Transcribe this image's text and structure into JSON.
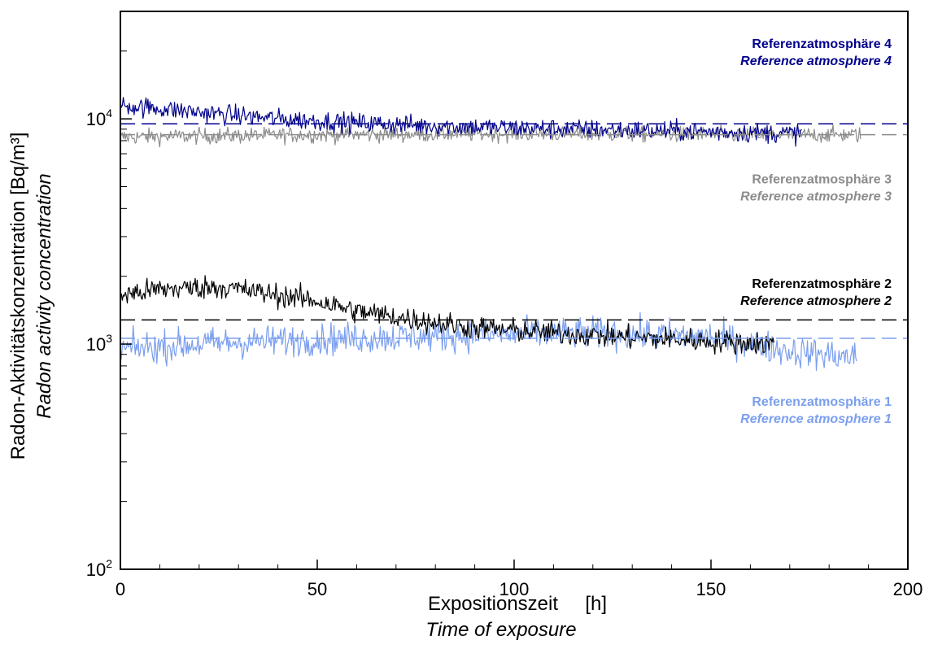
{
  "chart_data": {
    "type": "line",
    "xlabel": "Expositionszeit     [h]",
    "xlabel_en": "Time of exposure",
    "ylabel": "Radon-Aktivitätskonzentration [Bq/m³]",
    "ylabel_en": "Radon activity concentration",
    "xlim": [
      0,
      200
    ],
    "ylim": [
      100,
      30000
    ],
    "yscale": "log",
    "x_ticks": [
      0,
      50,
      100,
      150,
      200
    ],
    "x_tick_labels": [
      "0",
      "50",
      "100",
      "150",
      "200"
    ],
    "y_ticks": [
      100,
      1000,
      10000
    ],
    "y_tick_labels": [
      {
        "base": "10",
        "exp": "2"
      },
      {
        "base": "10",
        "exp": "3"
      },
      {
        "base": "10",
        "exp": "4"
      }
    ],
    "grid": false,
    "series": [
      {
        "name": "Referenzatmosphäre 4",
        "name_en": "Reference atmosphere 4",
        "color": "#00008B",
        "x_range": [
          0,
          173
        ],
        "trend": [
          [
            0,
            11500
          ],
          [
            20,
            10700
          ],
          [
            40,
            10000
          ],
          [
            60,
            9600
          ],
          [
            80,
            9300
          ],
          [
            100,
            9100
          ],
          [
            130,
            8900
          ],
          [
            160,
            8700
          ],
          [
            173,
            8600
          ]
        ],
        "noise": 0.05,
        "reference_value": 9500
      },
      {
        "name": "Referenzatmosphäre 3",
        "name_en": "Reference atmosphere 3",
        "color": "#8C8C8C",
        "x_range": [
          0,
          188
        ],
        "trend": [
          [
            0,
            8300
          ],
          [
            50,
            8500
          ],
          [
            100,
            8600
          ],
          [
            150,
            8500
          ],
          [
            188,
            8500
          ]
        ],
        "noise": 0.04,
        "reference_value": 8500
      },
      {
        "name": "Referenzatmosphäre 2",
        "name_en": "Reference atmosphere 2",
        "color": "#000000",
        "x_range": [
          0,
          166
        ],
        "trend": [
          [
            0,
            1650
          ],
          [
            10,
            1750
          ],
          [
            25,
            1800
          ],
          [
            40,
            1650
          ],
          [
            50,
            1550
          ],
          [
            60,
            1400
          ],
          [
            75,
            1280
          ],
          [
            90,
            1180
          ],
          [
            110,
            1120
          ],
          [
            130,
            1070
          ],
          [
            150,
            1030
          ],
          [
            166,
            1000
          ]
        ],
        "noise": 0.06,
        "reference_value": 1280
      },
      {
        "name": "Referenzatmosphäre 1",
        "name_en": "Reference atmosphere 1",
        "color": "#7B9FEF",
        "x_range": [
          0,
          187
        ],
        "trend": [
          [
            0,
            950
          ],
          [
            20,
            1000
          ],
          [
            50,
            1050
          ],
          [
            90,
            1100
          ],
          [
            120,
            1120
          ],
          [
            150,
            1080
          ],
          [
            170,
            930
          ],
          [
            187,
            870
          ]
        ],
        "noise": 0.08,
        "reference_value": 1060
      }
    ],
    "annotations": [
      {
        "text": "Referenzatmosphäre 4",
        "text_en": "Reference atmosphere 4",
        "color": "#00008B",
        "x": 200,
        "y": 20000
      },
      {
        "text": "Referenzatmosphäre 3",
        "text_en": "Reference atmosphere 3",
        "color": "#8C8C8C",
        "x": 200,
        "y": 5000
      },
      {
        "text": "Referenzatmosphäre 2",
        "text_en": "Reference atmosphere 2",
        "color": "#000000",
        "x": 200,
        "y": 1720
      },
      {
        "text": "Referenzatmosphäre 1",
        "text_en": "Reference atmosphere 1",
        "color": "#7B9FEF",
        "x": 200,
        "y": 515
      }
    ]
  }
}
